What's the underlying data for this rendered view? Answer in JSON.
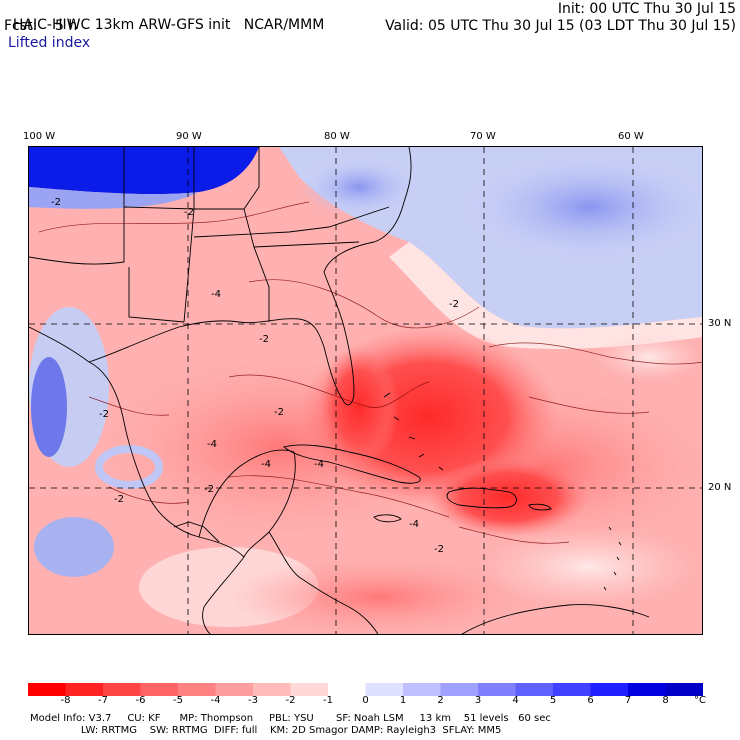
{
  "header": {
    "model": "HAIC-HIWC 13km ARW-GFS init",
    "org": "NCAR/MMM",
    "init": "Init: 00 UTC Thu 30 Jul 15",
    "fcst": "Fcst:    5 h",
    "valid": "Valid: 05 UTC Thu 30 Jul 15 (03 LDT Thu 30 Jul 15)",
    "field": "Lifted index"
  },
  "axes": {
    "lon_labels": [
      "100 W",
      "90 W",
      "80 W",
      "70 W",
      "60 W"
    ],
    "lat_labels": [
      "30 N",
      "20 N"
    ]
  },
  "contour_label": "-2",
  "contour_label_b": "-4",
  "colorbar": {
    "ticks": [
      "-8",
      "-7",
      "-6",
      "-5",
      "-4",
      "-3",
      "-2",
      "-1",
      "0",
      "1",
      "2",
      "3",
      "4",
      "5",
      "6",
      "7",
      "8"
    ],
    "unit": "°C",
    "colors": [
      "#ff0000",
      "#ff2222",
      "#ff4646",
      "#ff6464",
      "#ff8282",
      "#ff9e9e",
      "#ffbaba",
      "#ffd8d8",
      "#ffffff",
      "#e0e0ff",
      "#c0c0ff",
      "#a0a0ff",
      "#8080ff",
      "#6060ff",
      "#4040ff",
      "#2020ff",
      "#0000e0",
      "#0000c8"
    ]
  },
  "footer": {
    "line1": "Model Info: V3.7     CU: KF      MP: Thompson     PBL: YSU       SF: Noah LSM     13 km    51 levels   60 sec",
    "line2": "                LW: RRTMG    SW: RRTMG  DIFF: full    KM: 2D Smagor DAMP: Rayleigh3  SFLAY: MM5"
  }
}
